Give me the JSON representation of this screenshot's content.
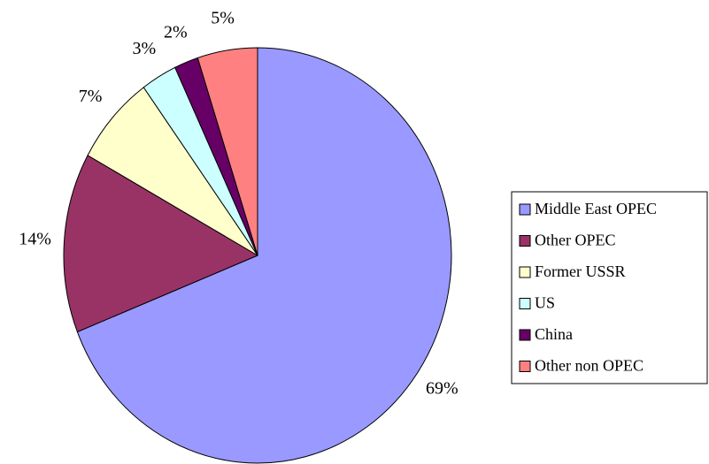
{
  "chart_data": {
    "type": "pie",
    "categories": [
      "Middle East OPEC",
      "Other OPEC",
      "Former USSR",
      "US",
      "China",
      "Other non OPEC"
    ],
    "values": [
      69,
      14,
      7,
      3,
      2,
      5
    ],
    "value_labels": [
      "69%",
      "14%",
      "7%",
      "3%",
      "2%",
      "5%"
    ],
    "colors": [
      "#9999ff",
      "#993366",
      "#ffffcc",
      "#ccffff",
      "#660066",
      "#ff8080"
    ],
    "legend": "right"
  }
}
